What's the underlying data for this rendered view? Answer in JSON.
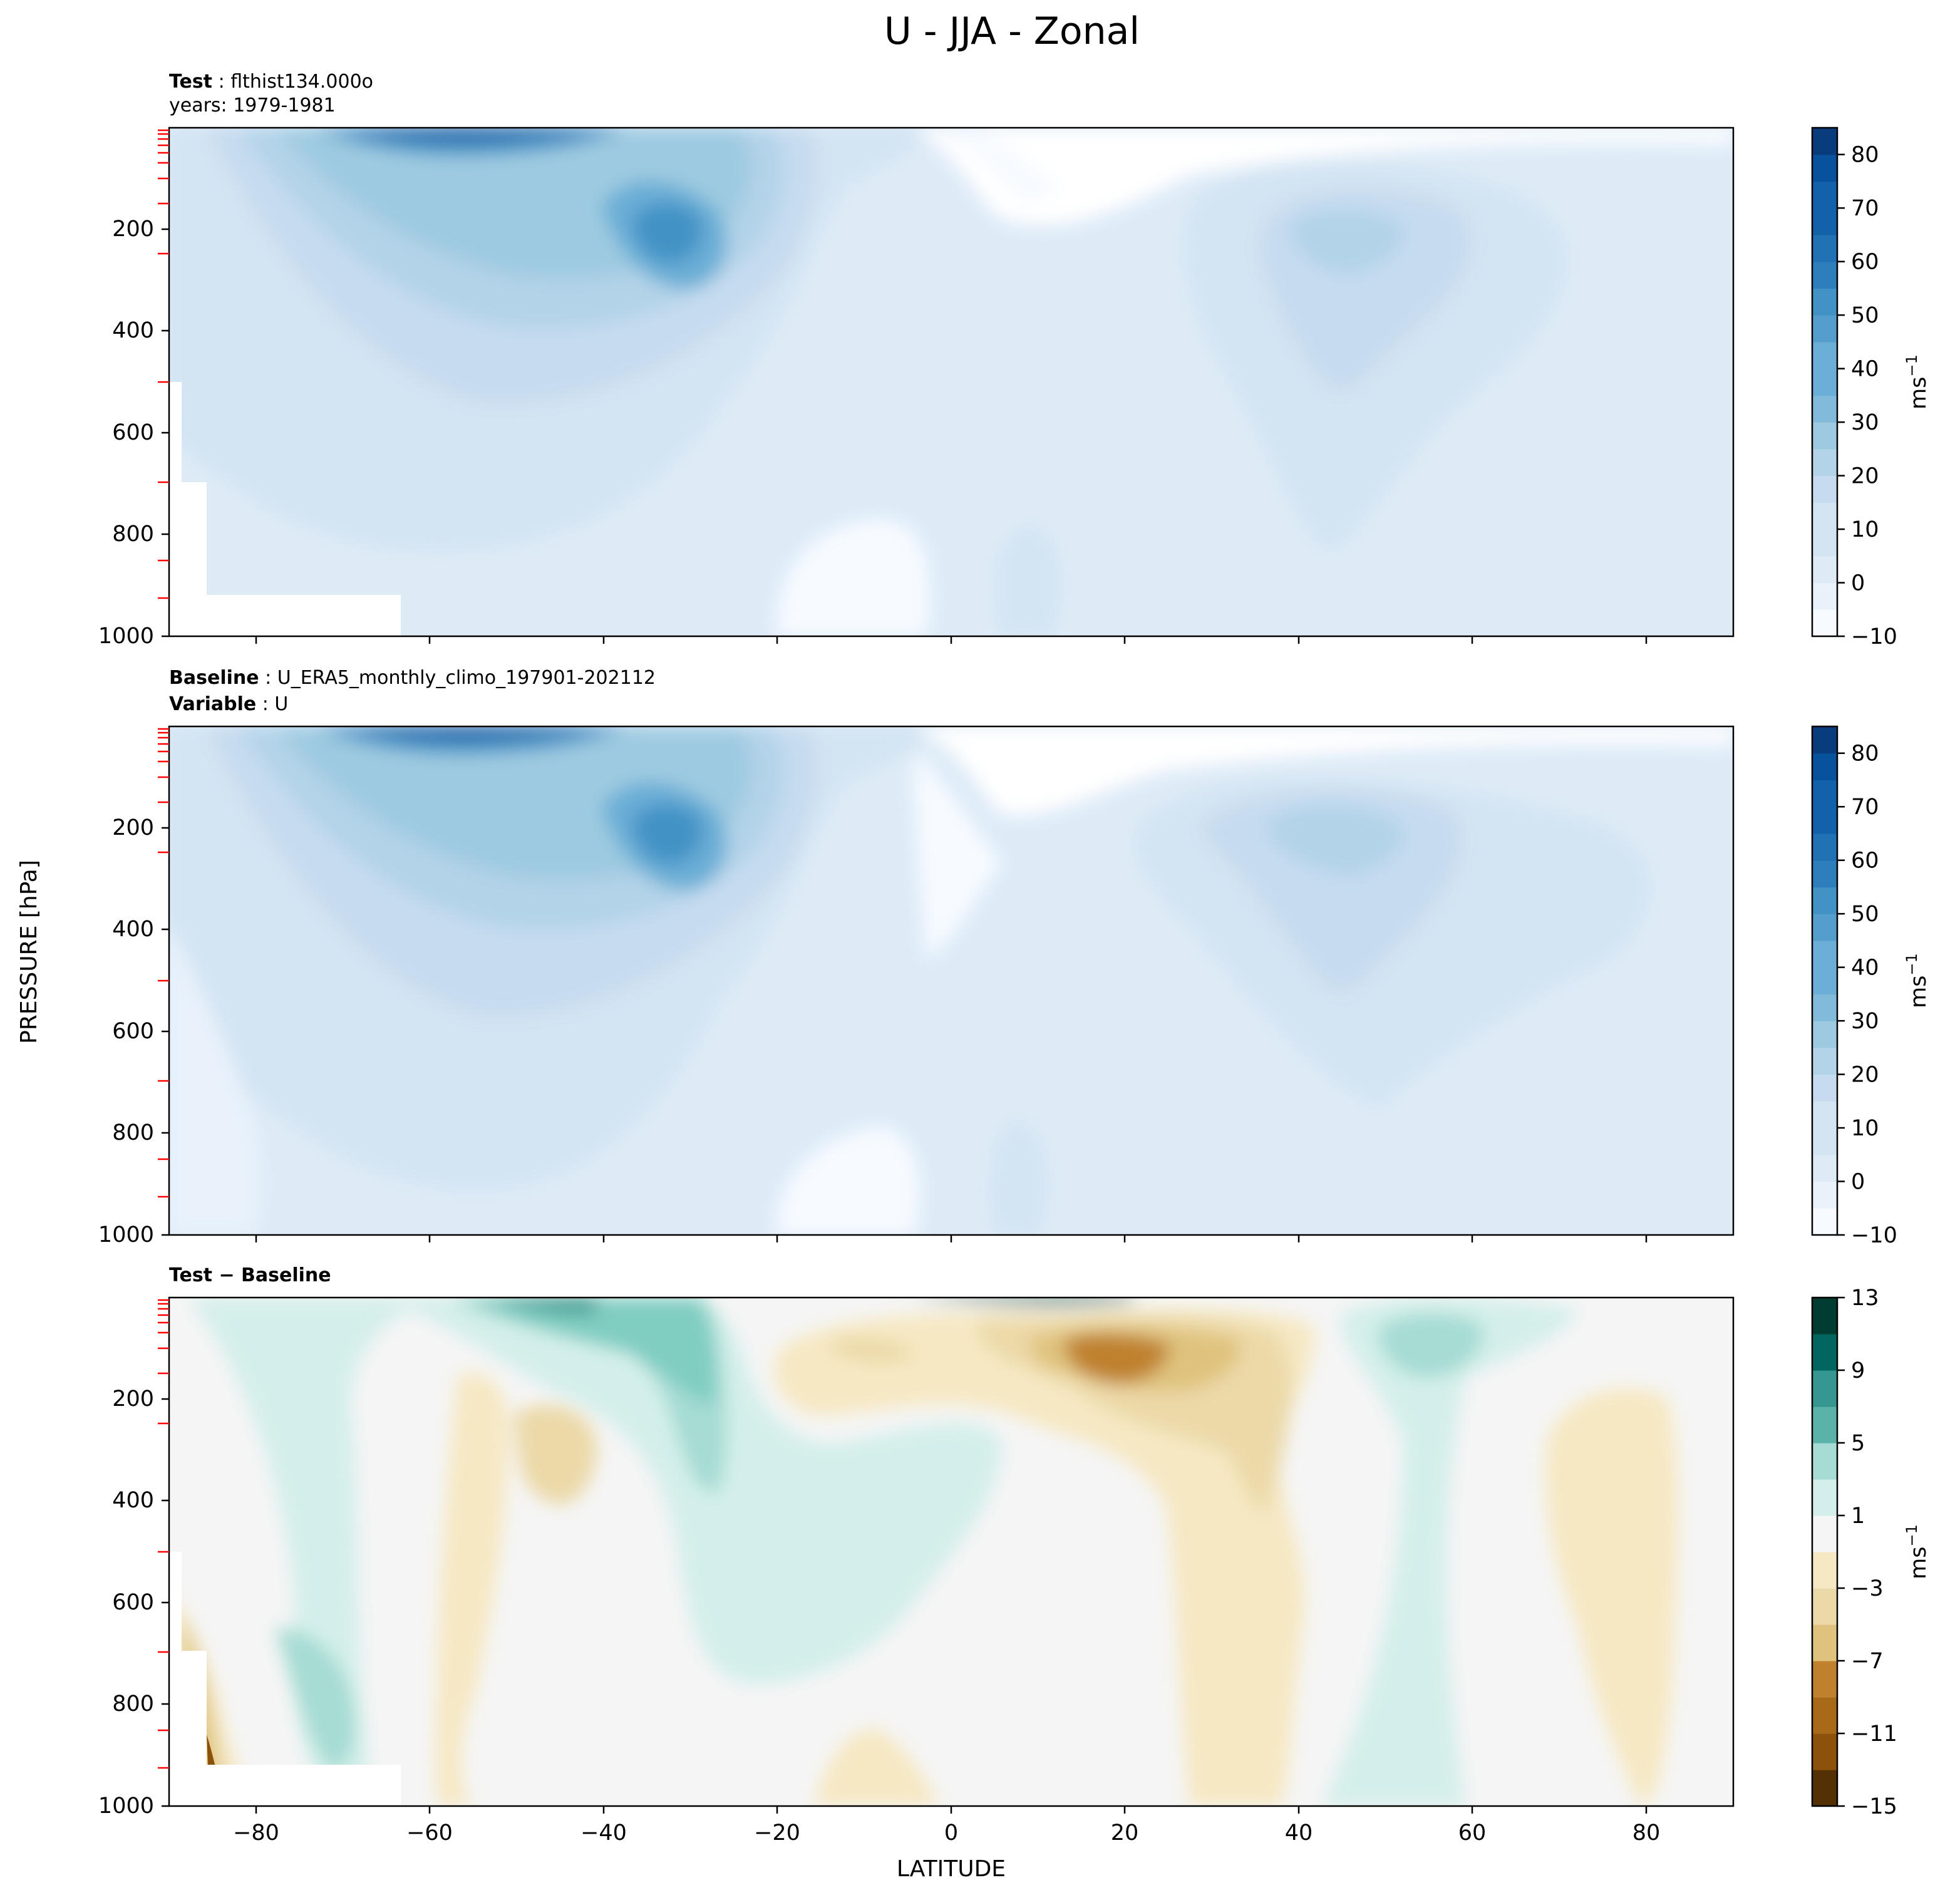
{
  "figure": {
    "suptitle": "U - JJA - Zonal",
    "ylabel": "PRESSURE [hPa]",
    "xlabel": "LATITUDE",
    "x_ticks": [
      "−80",
      "−60",
      "−40",
      "−20",
      "0",
      "20",
      "40",
      "60",
      "80"
    ],
    "y_ticks": [
      "200",
      "400",
      "600",
      "800",
      "1000"
    ]
  },
  "panels": {
    "test": {
      "title_bold": "Test",
      "title_rest": " : flthist134.000o",
      "subtitle": "years: 1979-1981",
      "colorbar_label": "ms",
      "colorbar_exp": "−1",
      "colorbar_ticks": [
        "80",
        "70",
        "60",
        "50",
        "40",
        "30",
        "20",
        "10",
        "0",
        "−10"
      ]
    },
    "baseline": {
      "title_bold": "Baseline",
      "title_rest": " : U_ERA5_monthly_climo_197901-202112",
      "subtitle_bold": "Variable",
      "subtitle_rest": " : U",
      "colorbar_label": "ms",
      "colorbar_exp": "−1",
      "colorbar_ticks": [
        "80",
        "70",
        "60",
        "50",
        "40",
        "30",
        "20",
        "10",
        "0",
        "−10"
      ]
    },
    "diff": {
      "title_bold": "Test − Baseline",
      "colorbar_label": "ms",
      "colorbar_exp": "−1",
      "colorbar_ticks": [
        "13",
        "9",
        "5",
        "1",
        "−3",
        "−7",
        "−11",
        "−15"
      ]
    }
  },
  "colors": {
    "blues": [
      "#f7fbff",
      "#e9f2fb",
      "#deebf7",
      "#d3e4f3",
      "#c6dbef",
      "#b3d3e8",
      "#9ecae1",
      "#82badb",
      "#6baed6",
      "#539ecd",
      "#4292c6",
      "#2e7ebc",
      "#2171b5",
      "#1361a9",
      "#08519c",
      "#083c7d"
    ],
    "brbg": [
      "#543005",
      "#8c510a",
      "#a86918",
      "#bf812d",
      "#d5b467",
      "#dfc27d",
      "#ecd9a8",
      "#f6e8c3",
      "#f5f5f5",
      "#d4efeb",
      "#a6dcd3",
      "#80cdc1",
      "#5ab2a8",
      "#35978f",
      "#01665e",
      "#003c30"
    ]
  },
  "chart_data": [
    {
      "type": "heatmap",
      "name": "Test",
      "x": [
        -80,
        -60,
        -40,
        -20,
        0,
        20,
        40,
        60,
        80
      ],
      "xlim": [
        -90,
        90
      ],
      "ylim": [
        1000,
        0
      ],
      "levels": [
        -10,
        -5,
        0,
        5,
        10,
        15,
        20,
        25,
        30,
        35,
        40,
        45,
        50,
        55,
        60,
        65,
        70,
        75,
        80,
        85
      ],
      "jets": [
        {
          "lat": -31,
          "pressure_hPa": 200,
          "max_ms": 48
        },
        {
          "lat": -58,
          "pressure_hPa": 10,
          "max_ms": 85
        },
        {
          "lat": 47,
          "pressure_hPa": 200,
          "max_ms": 27
        }
      ]
    },
    {
      "type": "heatmap",
      "name": "Baseline",
      "x": [
        -80,
        -60,
        -40,
        -20,
        0,
        20,
        40,
        60,
        80
      ],
      "xlim": [
        -90,
        90
      ],
      "ylim": [
        1000,
        0
      ],
      "levels": [
        -10,
        -5,
        0,
        5,
        10,
        15,
        20,
        25,
        30,
        35,
        40,
        45,
        50,
        55,
        60,
        65,
        70,
        75,
        80,
        85
      ],
      "jets": [
        {
          "lat": -30,
          "pressure_hPa": 200,
          "max_ms": 45
        },
        {
          "lat": -55,
          "pressure_hPa": 10,
          "max_ms": 85
        },
        {
          "lat": 45,
          "pressure_hPa": 200,
          "max_ms": 28
        }
      ]
    },
    {
      "type": "heatmap",
      "name": "Test − Baseline",
      "x": [
        -80,
        -60,
        -40,
        -20,
        0,
        20,
        40,
        60,
        80
      ],
      "xlim": [
        -90,
        90
      ],
      "ylim": [
        1000,
        0
      ],
      "levels": [
        -15,
        -13,
        -11,
        -9,
        -7,
        -5,
        -3,
        -1,
        1,
        3,
        5,
        7,
        9,
        11,
        13
      ],
      "features": [
        {
          "lat": 20,
          "pressure_hPa": 120,
          "value": -7
        },
        {
          "lat": -45,
          "pressure_hPa": 300,
          "value": -3
        },
        {
          "lat": -33,
          "pressure_hPa": 150,
          "value": 7
        },
        {
          "lat": 55,
          "pressure_hPa": 130,
          "value": 4
        },
        {
          "lat": -72,
          "pressure_hPa": 800,
          "value": 4
        }
      ]
    }
  ]
}
